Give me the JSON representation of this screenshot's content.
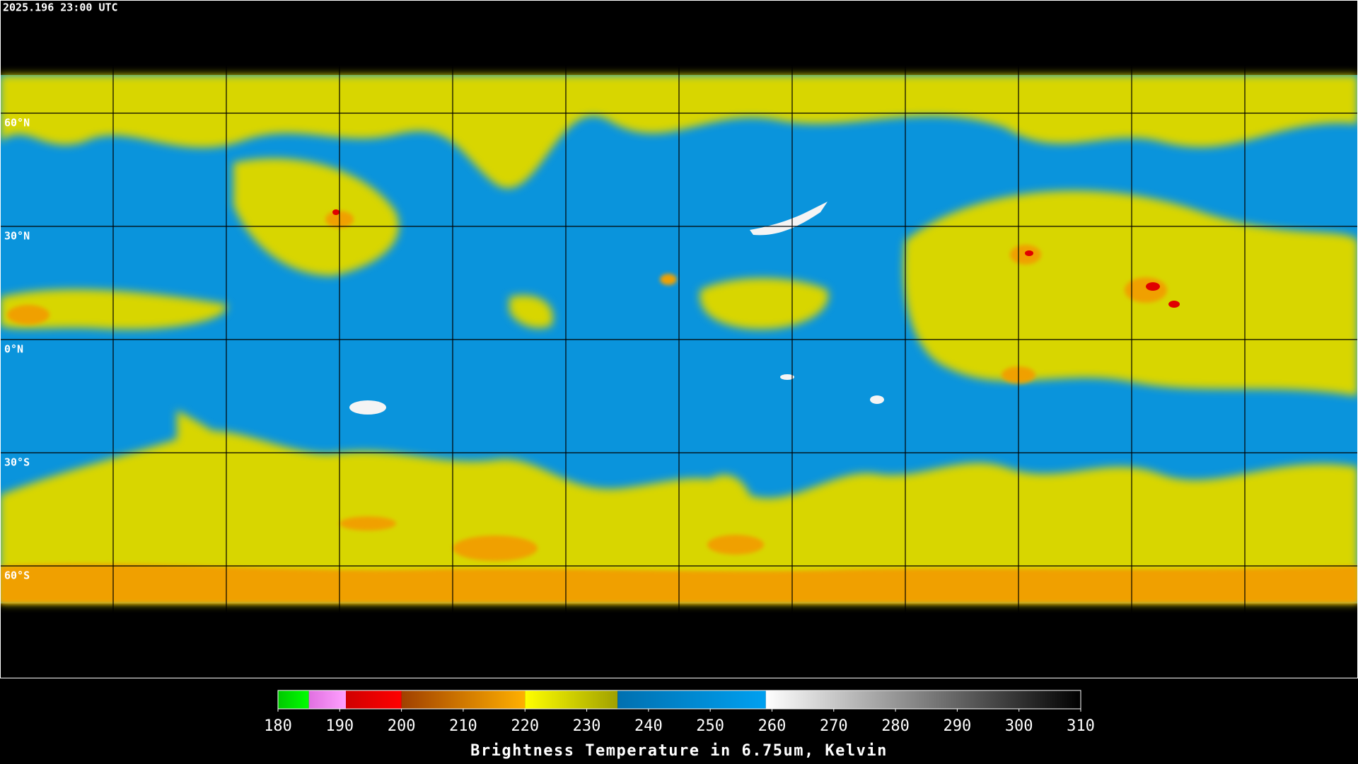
{
  "header": {
    "timestamp": "2025.196 23:00 UTC"
  },
  "map": {
    "latitude_labels": [
      "60°N",
      "30°N",
      "0°N",
      "30°S",
      "60°S"
    ]
  },
  "colorbar": {
    "title": "Brightness Temperature in 6.75um, Kelvin",
    "range": [
      180,
      310
    ],
    "ticks": [
      180,
      190,
      200,
      210,
      220,
      230,
      240,
      250,
      260,
      270,
      280,
      290,
      300,
      310
    ],
    "segments": [
      {
        "from": 180,
        "to": 185,
        "colors": [
          "#00c800",
          "#00ff00"
        ]
      },
      {
        "from": 185,
        "to": 191,
        "colors": [
          "#e070e0",
          "#ffa0ff"
        ]
      },
      {
        "from": 191,
        "to": 200,
        "colors": [
          "#d00000",
          "#ff0000"
        ]
      },
      {
        "from": 200,
        "to": 220,
        "colors": [
          "#a04000",
          "#ffb000"
        ]
      },
      {
        "from": 220,
        "to": 235,
        "colors": [
          "#ffff00",
          "#a0a000"
        ]
      },
      {
        "from": 235,
        "to": 259,
        "colors": [
          "#0070b0",
          "#00a0f0"
        ]
      },
      {
        "from": 259,
        "to": 310,
        "colors": [
          "#ffffff",
          "#000000"
        ]
      }
    ]
  }
}
